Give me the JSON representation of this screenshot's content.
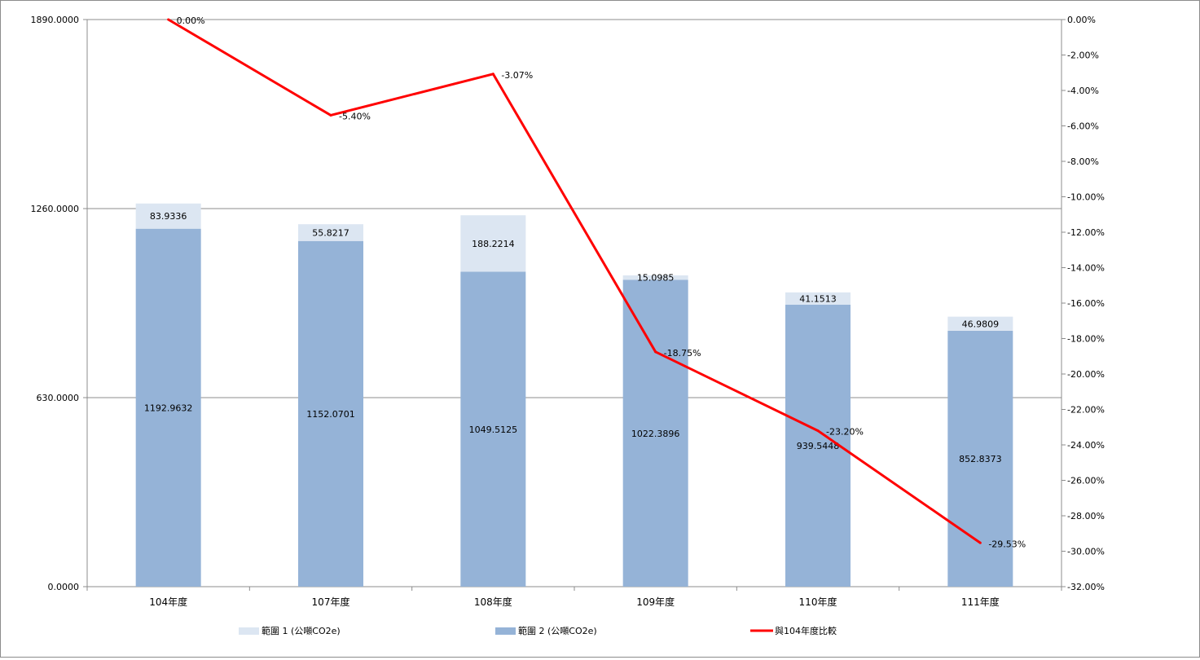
{
  "chart_data": {
    "type": "bar",
    "stacked": true,
    "categories": [
      "104年度",
      "107年度",
      "108年度",
      "109年度",
      "110年度",
      "111年度"
    ],
    "series": [
      {
        "name": "範圍 2 (公噸CO2e)",
        "type": "bar",
        "axis": "left",
        "color": "#95b3d7",
        "values": [
          1192.9632,
          1152.0701,
          1049.5125,
          1022.3896,
          939.5448,
          852.8373
        ],
        "labels": [
          "1192.9632",
          "1152.0701",
          "1049.5125",
          "1022.3896",
          "939.5448",
          "852.8373"
        ]
      },
      {
        "name": "範圍 1 (公噸CO2e)",
        "type": "bar",
        "axis": "left",
        "color": "#dce6f2",
        "values": [
          83.9336,
          55.8217,
          188.2214,
          15.0985,
          41.1513,
          46.9809
        ],
        "labels": [
          "83.9336",
          "55.8217",
          "188.2214",
          "15.0985",
          "41.1513",
          "46.9809"
        ]
      },
      {
        "name": "與104年度比較",
        "type": "line",
        "axis": "right",
        "color": "#ff0000",
        "values": [
          0.0,
          -5.4,
          -3.07,
          -18.75,
          -23.2,
          -29.53
        ],
        "labels": [
          "0.00%",
          "-5.40%",
          "-3.07%",
          "-18.75%",
          "-23.20%",
          "-29.53%"
        ]
      }
    ],
    "y_left": {
      "ylim": [
        0,
        1890
      ],
      "ticks": [
        0,
        630,
        1260,
        1890
      ],
      "tick_labels": [
        "0.0000",
        "630.0000",
        "1260.0000",
        "1890.0000"
      ]
    },
    "y_right": {
      "ylim": [
        -32,
        0
      ],
      "ticks": [
        0,
        -2,
        -4,
        -6,
        -8,
        -10,
        -12,
        -14,
        -16,
        -18,
        -20,
        -22,
        -24,
        -26,
        -28,
        -30,
        -32
      ],
      "tick_labels": [
        "0.00%",
        "-2.00%",
        "-4.00%",
        "-6.00%",
        "-8.00%",
        "-10.00%",
        "-12.00%",
        "-14.00%",
        "-16.00%",
        "-18.00%",
        "-20.00%",
        "-22.00%",
        "-24.00%",
        "-26.00%",
        "-28.00%",
        "-30.00%",
        "-32.00%"
      ]
    },
    "grid": true,
    "legend_position": "bottom",
    "legend_order": [
      "範圍 1 (公噸CO2e)",
      "範圍 2 (公噸CO2e)",
      "與104年度比較"
    ],
    "title": "",
    "xlabel": "",
    "ylabel": ""
  }
}
